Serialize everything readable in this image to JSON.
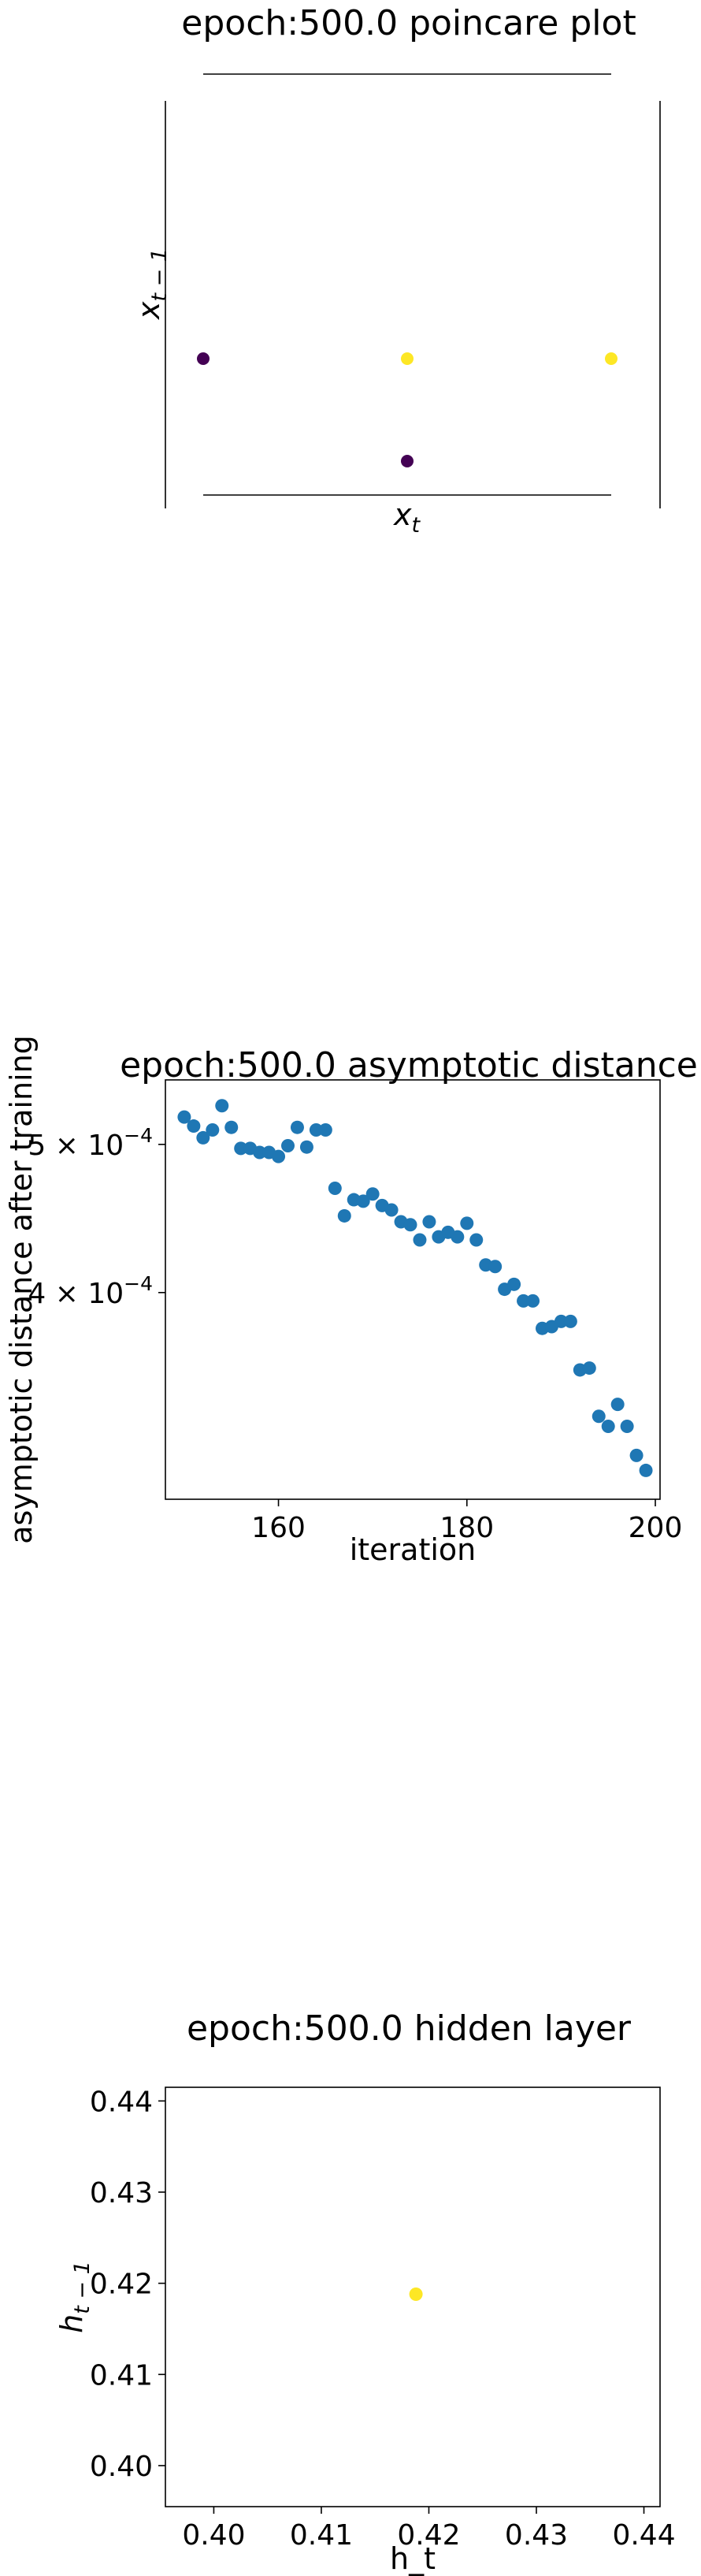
{
  "charts": [
    {
      "type": "scatter",
      "title": "epoch:500.0 poincare plot",
      "xlabel": "x_t",
      "ylabel": "x_{t-1}",
      "colormap": "viridis",
      "points": [
        {
          "x": 0,
          "y": 0,
          "c": 0
        },
        {
          "x": 1,
          "y": 0,
          "c": 1
        },
        {
          "x": 2,
          "y": 0,
          "c": 1
        },
        {
          "x": 1,
          "y": -1,
          "c": 0
        }
      ]
    },
    {
      "type": "scatter",
      "title": "epoch:500.0 asymptotic distance",
      "xlabel": "iteration",
      "ylabel": "asymptotic distance after training",
      "yscale": "log",
      "xlim": [
        148,
        200.5
      ],
      "ylim": [
        0.000293,
        0.000551
      ],
      "xticks": [
        160,
        180,
        200
      ],
      "yticks": [
        {
          "value": 0.0005,
          "mantissa": "5",
          "exponent": "−4"
        },
        {
          "value": 0.0004,
          "mantissa": "4",
          "exponent": "−4"
        }
      ],
      "color": "#1f77b4",
      "x": [
        150,
        151,
        152,
        153,
        154,
        155,
        156,
        157,
        158,
        159,
        160,
        161,
        162,
        163,
        164,
        165,
        166,
        167,
        168,
        169,
        170,
        171,
        172,
        173,
        174,
        175,
        176,
        177,
        178,
        179,
        180,
        181,
        182,
        183,
        184,
        185,
        186,
        187,
        188,
        189,
        190,
        191,
        192,
        193,
        194,
        195,
        196,
        197,
        198,
        199
      ],
      "y": [
        0.000521,
        0.000514,
        0.000505,
        0.000511,
        0.00053,
        0.000513,
        0.000497,
        0.000497,
        0.000494,
        0.000494,
        0.000491,
        0.000499,
        0.000513,
        0.000498,
        0.000511,
        0.000511,
        0.000468,
        0.000449,
        0.00046,
        0.000459,
        0.000464,
        0.000456,
        0.000453,
        0.000445,
        0.000443,
        0.000433,
        0.000445,
        0.000435,
        0.000438,
        0.000435,
        0.000444,
        0.000433,
        0.000417,
        0.000416,
        0.000402,
        0.000405,
        0.000395,
        0.000395,
        0.000379,
        0.00038,
        0.000383,
        0.000383,
        0.000356,
        0.000357,
        0.000332,
        0.000327,
        0.000338,
        0.000327,
        0.000313,
        0.000306
      ]
    },
    {
      "type": "scatter",
      "title": "epoch:500.0 hidden layer",
      "xlabel": "h_t",
      "ylabel": "h_{t-1}",
      "xlim": [
        0.3955,
        0.4415
      ],
      "ylim": [
        0.3955,
        0.4415
      ],
      "xticks": [
        "0.40",
        "0.41",
        "0.42",
        "0.43",
        "0.44"
      ],
      "yticks": [
        "0.40",
        "0.41",
        "0.42",
        "0.43",
        "0.44"
      ],
      "points": [
        {
          "x": 0.4188,
          "y": 0.4188
        }
      ],
      "color": "#fde725"
    }
  ],
  "colors": {
    "viridis_low": "#440154",
    "viridis_high": "#fde725",
    "tab_blue": "#1f77b4"
  }
}
